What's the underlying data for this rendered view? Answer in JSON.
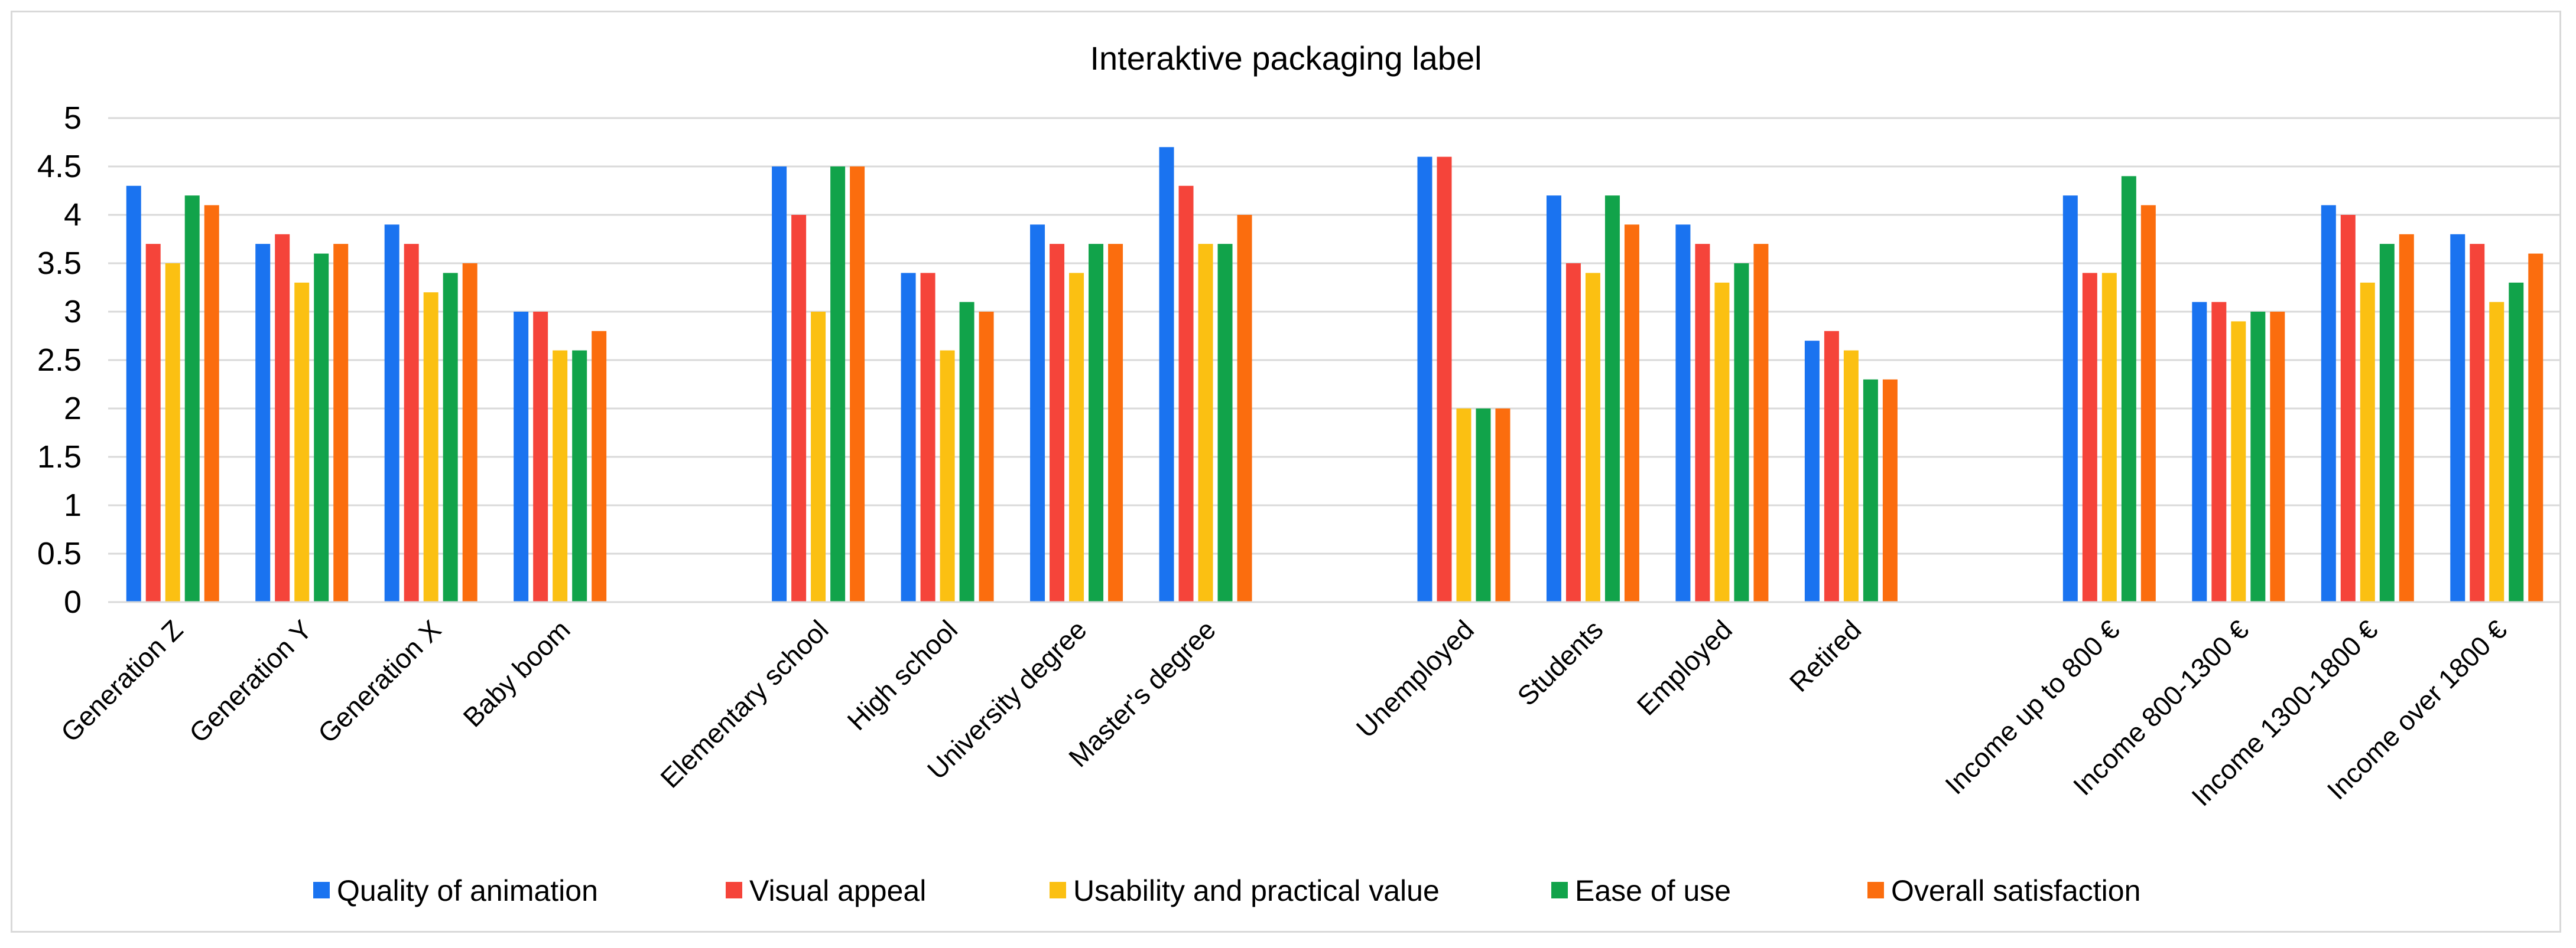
{
  "chart_data": {
    "type": "bar",
    "title": "Interaktive packaging label",
    "xlabel": "",
    "ylabel": "",
    "ylim": [
      0,
      5
    ],
    "yticks": [
      "0",
      "0.5",
      "1",
      "1.5",
      "2",
      "2.5",
      "3",
      "3.5",
      "4",
      "4.5",
      "5"
    ],
    "grid": true,
    "legend_position": "bottom",
    "categories": [
      "Generation Z",
      "Generation Y",
      "Generation X",
      "Baby boom",
      "",
      "Elementary school",
      "High school",
      "University degree",
      "Master's degree",
      "",
      "Unemployed",
      "Students",
      "Employed",
      "Retired",
      "",
      "Income up to 800 €",
      "Income 800-1300 €",
      "Income 1300-1800 €",
      "Income over 1800 €"
    ],
    "series": [
      {
        "name": "Quality of animation",
        "color": "#1a73f0",
        "values": [
          4.3,
          3.7,
          3.9,
          3.0,
          null,
          4.5,
          3.4,
          3.9,
          4.7,
          null,
          4.6,
          4.2,
          3.9,
          2.7,
          null,
          4.2,
          3.1,
          4.1,
          3.8
        ]
      },
      {
        "name": "Visual appeal",
        "color": "#f5443a",
        "values": [
          3.7,
          3.8,
          3.7,
          3.0,
          null,
          4.0,
          3.4,
          3.7,
          4.3,
          null,
          4.6,
          3.5,
          3.7,
          2.8,
          null,
          3.4,
          3.1,
          4.0,
          3.7
        ]
      },
      {
        "name": "Usability and practical value",
        "color": "#fbc012",
        "values": [
          3.5,
          3.3,
          3.2,
          2.6,
          null,
          3.0,
          2.6,
          3.4,
          3.7,
          null,
          2.0,
          3.4,
          3.3,
          2.6,
          null,
          3.4,
          2.9,
          3.3,
          3.1
        ]
      },
      {
        "name": "Ease of use",
        "color": "#11a34a",
        "values": [
          4.2,
          3.6,
          3.4,
          2.6,
          null,
          4.5,
          3.1,
          3.7,
          3.7,
          null,
          2.0,
          4.2,
          3.5,
          2.3,
          null,
          4.4,
          3.0,
          3.7,
          3.3
        ]
      },
      {
        "name": "Overall satisfaction",
        "color": "#fb6d0e",
        "values": [
          4.1,
          3.7,
          3.5,
          2.8,
          null,
          4.5,
          3.0,
          3.7,
          4.0,
          null,
          2.0,
          3.9,
          3.7,
          2.3,
          null,
          4.1,
          3.0,
          3.8,
          3.6
        ]
      }
    ]
  }
}
